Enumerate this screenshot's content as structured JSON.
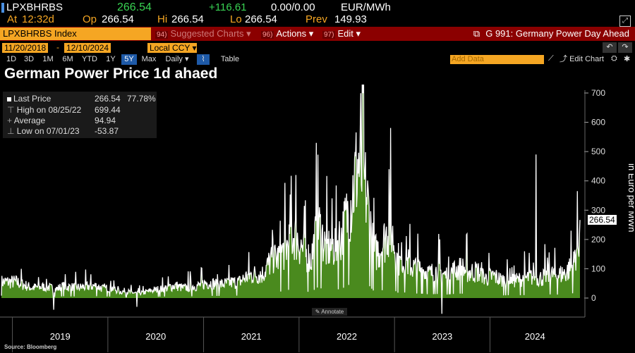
{
  "quote": {
    "ticker": "LPXBHRBS",
    "last": "266.54",
    "change": "+116.61",
    "bidask": "0.00/0.00",
    "unit": "EUR/MWh",
    "at_label": "At",
    "at_time": "12:32d",
    "op_label": "Op",
    "op": "266.54",
    "hi_label": "Hi",
    "hi": "266.54",
    "lo_label": "Lo",
    "lo": "266.54",
    "prev_label": "Prev",
    "prev": "149.93"
  },
  "toolbar": {
    "index_label": "LPXBHRBS Index",
    "suggested_num": "94)",
    "suggested": "Suggested Charts ▾",
    "actions_num": "96)",
    "actions": "Actions ▾",
    "edit_num": "97)",
    "edit": "Edit ▾",
    "right_title": "G 991: Germany Power Day Ahead"
  },
  "dates": {
    "start": "11/20/2018",
    "end": "12/10/2024",
    "currency": "Local CCY ▾"
  },
  "periods": [
    "1D",
    "3D",
    "1M",
    "6M",
    "YTD",
    "1Y",
    "5Y",
    "Max",
    "Daily ▾"
  ],
  "active_period": "5Y",
  "table_label": "Table",
  "add_data_placeholder": "Add Data",
  "edit_chart": "Edit Chart",
  "annotate": "Annotate",
  "source": "Source: Bloomberg",
  "legend": {
    "last_label": "Last Price",
    "last_value": "266.54",
    "last_pct": "77.78%",
    "high_label": "High on 08/25/22",
    "high_value": "699.44",
    "avg_label": "Average",
    "avg_value": "94.94",
    "low_label": "Low on 07/01/23",
    "low_value": "-53.87"
  },
  "colors": {
    "accent": "#f5a623",
    "fill": "#4a8a1e",
    "line": "#ffffff",
    "toolbar": "#8b0000"
  },
  "chart_data": {
    "type": "area",
    "title": "German Power Price 1d ahaed",
    "ylabel": "in Euro per MWh",
    "ylim": [
      -60,
      720
    ],
    "yticks": [
      0,
      100,
      200,
      300,
      400,
      500,
      600,
      700
    ],
    "xticks": [
      "2019",
      "2020",
      "2021",
      "2022",
      "2023",
      "2024"
    ],
    "xlim": [
      "2018-11-20",
      "2024-12-10"
    ],
    "last_value": 266.54,
    "series": [
      {
        "values_monthly": [
          [
            "2018-12",
            55
          ],
          [
            "2019-01",
            55
          ],
          [
            "2019-02",
            45
          ],
          [
            "2019-03",
            35
          ],
          [
            "2019-04",
            38
          ],
          [
            "2019-05",
            38
          ],
          [
            "2019-06",
            30
          ],
          [
            "2019-07",
            40
          ],
          [
            "2019-08",
            37
          ],
          [
            "2019-09",
            36
          ],
          [
            "2019-10",
            40
          ],
          [
            "2019-11",
            42
          ],
          [
            "2019-12",
            32
          ],
          [
            "2020-01",
            35
          ],
          [
            "2020-02",
            22
          ],
          [
            "2020-03",
            22
          ],
          [
            "2020-04",
            17
          ],
          [
            "2020-05",
            18
          ],
          [
            "2020-06",
            26
          ],
          [
            "2020-07",
            30
          ],
          [
            "2020-08",
            35
          ],
          [
            "2020-09",
            43
          ],
          [
            "2020-10",
            34
          ],
          [
            "2020-11",
            39
          ],
          [
            "2020-12",
            43
          ],
          [
            "2021-01",
            53
          ],
          [
            "2021-02",
            48
          ],
          [
            "2021-03",
            47
          ],
          [
            "2021-04",
            53
          ],
          [
            "2021-05",
            54
          ],
          [
            "2021-06",
            74
          ],
          [
            "2021-07",
            81
          ],
          [
            "2021-08",
            82
          ],
          [
            "2021-09",
            128
          ],
          [
            "2021-10",
            139
          ],
          [
            "2021-11",
            176
          ],
          [
            "2021-12",
            221
          ],
          [
            "2022-01",
            168
          ],
          [
            "2022-02",
            129
          ],
          [
            "2022-03",
            252
          ],
          [
            "2022-04",
            166
          ],
          [
            "2022-05",
            178
          ],
          [
            "2022-06",
            218
          ],
          [
            "2022-07",
            315
          ],
          [
            "2022-08",
            465
          ],
          [
            "2022-09",
            357
          ],
          [
            "2022-10",
            151
          ],
          [
            "2022-11",
            178
          ],
          [
            "2022-12",
            252
          ],
          [
            "2023-01",
            118
          ],
          [
            "2023-02",
            128
          ],
          [
            "2023-03",
            103
          ],
          [
            "2023-04",
            100
          ],
          [
            "2023-05",
            82
          ],
          [
            "2023-06",
            94
          ],
          [
            "2023-07",
            77
          ],
          [
            "2023-08",
            93
          ],
          [
            "2023-09",
            101
          ],
          [
            "2023-10",
            88
          ],
          [
            "2023-11",
            91
          ],
          [
            "2023-12",
            68
          ],
          [
            "2024-01",
            76
          ],
          [
            "2024-02",
            61
          ],
          [
            "2024-03",
            64
          ],
          [
            "2024-04",
            62
          ],
          [
            "2024-05",
            67
          ],
          [
            "2024-06",
            73
          ],
          [
            "2024-07",
            68
          ],
          [
            "2024-08",
            82
          ],
          [
            "2024-09",
            78
          ],
          [
            "2024-10",
            86
          ],
          [
            "2024-11",
            111
          ],
          [
            "2024-12",
            266.54
          ]
        ],
        "spikes": [
          [
            "2021-12-21",
            420
          ],
          [
            "2022-03-08",
            530
          ],
          [
            "2022-08-25",
            699.44
          ],
          [
            "2022-12-12",
            440
          ],
          [
            "2024-06-26",
            490
          ],
          [
            "2024-11-06",
            230
          ]
        ],
        "dips": [
          [
            "2019-06-08",
            -40
          ],
          [
            "2020-04-21",
            -30
          ],
          [
            "2023-07-01",
            -53.87
          ]
        ]
      }
    ]
  }
}
